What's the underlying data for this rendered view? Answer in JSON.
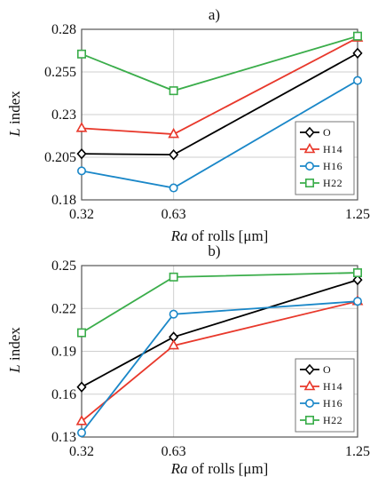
{
  "chart_data": [
    {
      "type": "line",
      "panel_label": "a)",
      "x": [
        0.32,
        0.63,
        1.25
      ],
      "x_ticks": [
        "0.32",
        "0.63",
        "1.25"
      ],
      "xlim": [
        0.32,
        1.25
      ],
      "ylim": [
        0.18,
        0.28
      ],
      "y_ticks": [
        "0.18",
        "0.205",
        "0.23",
        "0.255",
        "0.28"
      ],
      "y_tick_values": [
        0.18,
        0.205,
        0.23,
        0.255,
        0.28
      ],
      "xlabel_italic": "Ra",
      "xlabel_rest": " of rolls [μm]",
      "ylabel_italic": "L",
      "ylabel_rest": " index",
      "grid": true,
      "legend_position": "right",
      "series": [
        {
          "name": "O",
          "color": "#000000",
          "marker": "diamond",
          "values": [
            0.207,
            0.2065,
            0.266
          ]
        },
        {
          "name": "H14",
          "color": "#e8382b",
          "marker": "triangle",
          "values": [
            0.222,
            0.2185,
            0.275
          ]
        },
        {
          "name": "H16",
          "color": "#1a87c8",
          "marker": "circle",
          "values": [
            0.197,
            0.187,
            0.25
          ]
        },
        {
          "name": "H22",
          "color": "#3aad4a",
          "marker": "square",
          "values": [
            0.2655,
            0.244,
            0.276
          ]
        }
      ]
    },
    {
      "type": "line",
      "panel_label": "b)",
      "x": [
        0.32,
        0.63,
        1.25
      ],
      "x_ticks": [
        "0.32",
        "0.63",
        "1.25"
      ],
      "xlim": [
        0.32,
        1.25
      ],
      "ylim": [
        0.13,
        0.25
      ],
      "y_ticks": [
        "0.13",
        "0.16",
        "0.19",
        "0.22",
        "0.25"
      ],
      "y_tick_values": [
        0.13,
        0.16,
        0.19,
        0.22,
        0.25
      ],
      "xlabel_italic": "Ra",
      "xlabel_rest": " of rolls [μm]",
      "ylabel_italic": "L",
      "ylabel_rest": " index",
      "grid": true,
      "legend_position": "right",
      "series": [
        {
          "name": "O",
          "color": "#000000",
          "marker": "diamond",
          "values": [
            0.165,
            0.2,
            0.24
          ]
        },
        {
          "name": "H14",
          "color": "#e8382b",
          "marker": "triangle",
          "values": [
            0.141,
            0.194,
            0.225
          ]
        },
        {
          "name": "H16",
          "color": "#1a87c8",
          "marker": "circle",
          "values": [
            0.133,
            0.216,
            0.225
          ]
        },
        {
          "name": "H22",
          "color": "#3aad4a",
          "marker": "square",
          "values": [
            0.203,
            0.242,
            0.245
          ]
        }
      ]
    }
  ]
}
